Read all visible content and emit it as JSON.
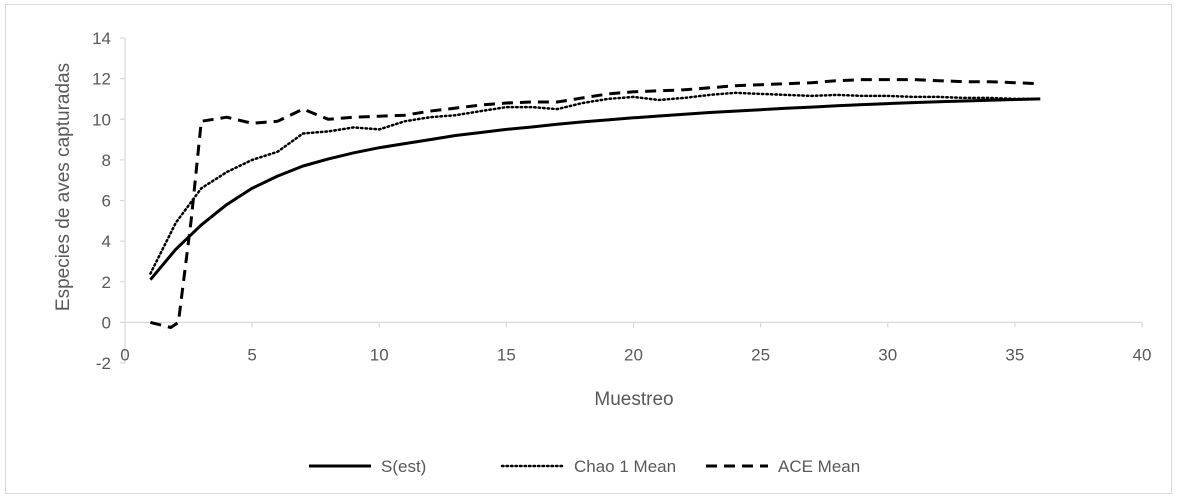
{
  "chart_data": {
    "type": "line",
    "title": "",
    "xlabel": "Muestreo",
    "ylabel": "Especies de aves capturadas",
    "xlim": [
      0,
      40
    ],
    "ylim": [
      -2,
      14
    ],
    "x_ticks": [
      0,
      5,
      10,
      15,
      20,
      25,
      30,
      35,
      40
    ],
    "y_ticks": [
      -2,
      0,
      2,
      4,
      6,
      8,
      10,
      12,
      14
    ],
    "grid": false,
    "legend": "bottom",
    "series": [
      {
        "name": "S(est)",
        "style": "solid",
        "color": "#000000",
        "x": [
          1,
          2,
          3,
          4,
          5,
          6,
          7,
          8,
          9,
          10,
          11,
          12,
          13,
          14,
          15,
          16,
          17,
          18,
          19,
          20,
          21,
          22,
          23,
          24,
          25,
          26,
          27,
          28,
          29,
          30,
          31,
          32,
          33,
          34,
          35,
          36
        ],
        "y": [
          2.1,
          3.6,
          4.8,
          5.8,
          6.6,
          7.2,
          7.7,
          8.05,
          8.35,
          8.6,
          8.8,
          9.0,
          9.2,
          9.35,
          9.5,
          9.62,
          9.75,
          9.87,
          9.97,
          10.07,
          10.16,
          10.25,
          10.33,
          10.4,
          10.47,
          10.54,
          10.6,
          10.66,
          10.72,
          10.77,
          10.82,
          10.86,
          10.9,
          10.94,
          10.97,
          11.0
        ]
      },
      {
        "name": "Chao 1 Mean",
        "style": "dotted",
        "color": "#000000",
        "x": [
          1,
          2,
          3,
          4,
          5,
          6,
          7,
          8,
          9,
          10,
          11,
          12,
          13,
          14,
          15,
          16,
          17,
          18,
          19,
          20,
          21,
          22,
          23,
          24,
          25,
          26,
          27,
          28,
          29,
          30,
          31,
          32,
          33,
          34,
          35,
          36
        ],
        "y": [
          2.4,
          4.9,
          6.6,
          7.4,
          8.0,
          8.4,
          9.3,
          9.4,
          9.6,
          9.5,
          9.9,
          10.1,
          10.2,
          10.4,
          10.6,
          10.6,
          10.5,
          10.8,
          11.0,
          11.1,
          10.95,
          11.05,
          11.2,
          11.3,
          11.25,
          11.2,
          11.15,
          11.2,
          11.15,
          11.15,
          11.1,
          11.1,
          11.05,
          11.05,
          11.0,
          11.0
        ]
      },
      {
        "name": "ACE Mean",
        "style": "dashed",
        "color": "#000000",
        "x": [
          1,
          1.8,
          2.1,
          2.6,
          3,
          4,
          5,
          6,
          7,
          8,
          9,
          10,
          11,
          12,
          13,
          14,
          15,
          16,
          17,
          18,
          19,
          20,
          21,
          22,
          23,
          24,
          25,
          26,
          27,
          28,
          29,
          30,
          31,
          32,
          33,
          34,
          35,
          36
        ],
        "y": [
          0,
          -0.25,
          0,
          5.0,
          9.9,
          10.1,
          9.8,
          9.9,
          10.5,
          10.0,
          10.1,
          10.15,
          10.2,
          10.4,
          10.55,
          10.7,
          10.8,
          10.85,
          10.85,
          11.05,
          11.25,
          11.35,
          11.4,
          11.45,
          11.55,
          11.65,
          11.7,
          11.75,
          11.8,
          11.9,
          11.95,
          11.95,
          11.95,
          11.9,
          11.85,
          11.85,
          11.8,
          11.75
        ]
      }
    ]
  }
}
